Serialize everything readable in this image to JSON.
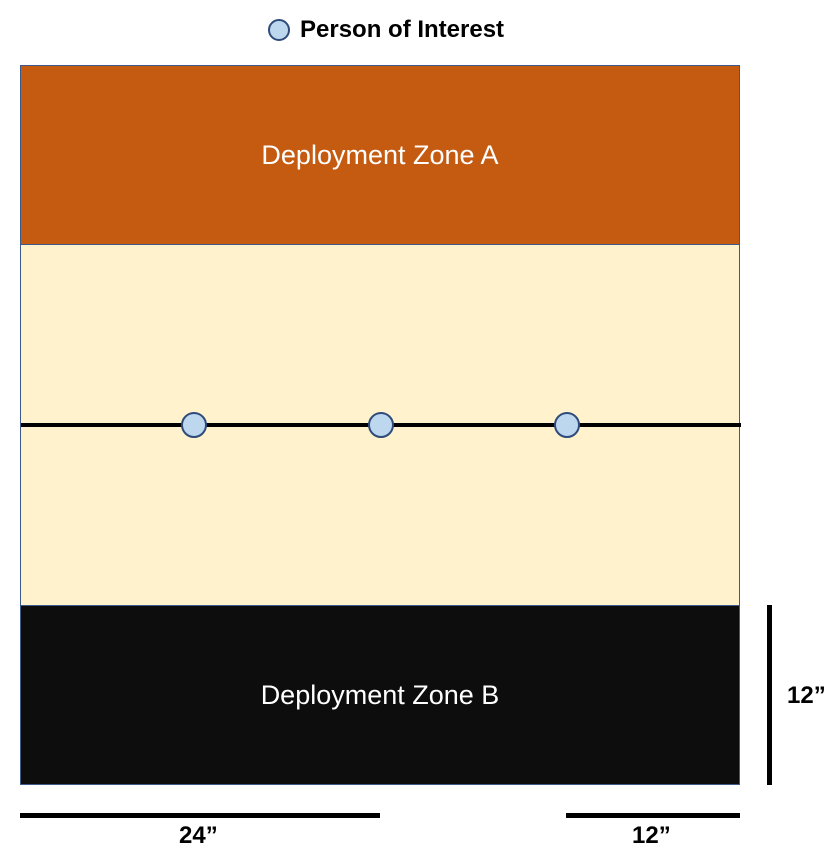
{
  "legend": {
    "marker_icon": "person-of-interest-marker",
    "label": "Person of Interest"
  },
  "zones": {
    "zone_a": {
      "label": "Deployment Zone A",
      "color": "#c55a11"
    },
    "midfield": {
      "color": "#fff2cc"
    },
    "zone_b": {
      "label": "Deployment Zone B",
      "color": "#0d0d0d"
    }
  },
  "marker_color": "#bdd7ee",
  "center_line": {
    "markers": 3
  },
  "scales": {
    "width_24": "24”",
    "width_12": "12”",
    "height_12": "12”"
  }
}
